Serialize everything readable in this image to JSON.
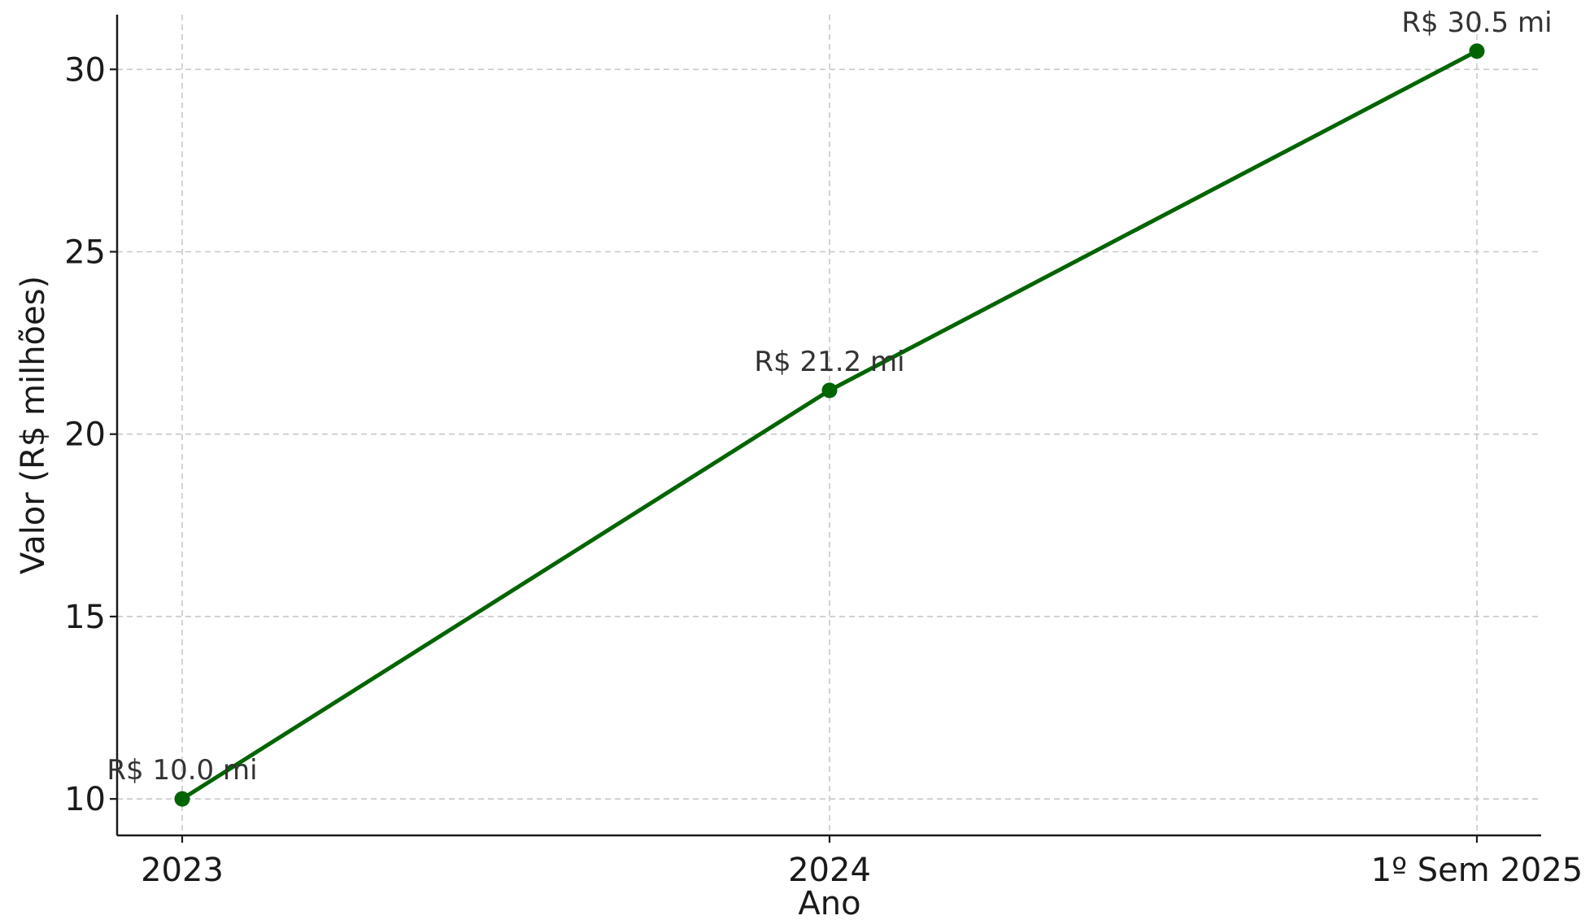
{
  "chart_data": {
    "type": "line",
    "categories": [
      "2023",
      "2024",
      "1º Sem 2025"
    ],
    "series": [
      {
        "values": [
          10.0,
          21.2,
          30.5
        ],
        "labels": [
          "R$ 10.0 mi",
          "R$ 21.2 mi",
          "R$ 30.5 mi"
        ],
        "color": "#006400"
      }
    ],
    "title": "",
    "xlabel": "Ano",
    "ylabel": "Valor (R$ milhões)",
    "ylim": [
      9.0,
      31.5
    ],
    "yticks": [
      10,
      15,
      20,
      25,
      30
    ],
    "grid": true,
    "grid_style": "dashed",
    "legend": "none"
  }
}
